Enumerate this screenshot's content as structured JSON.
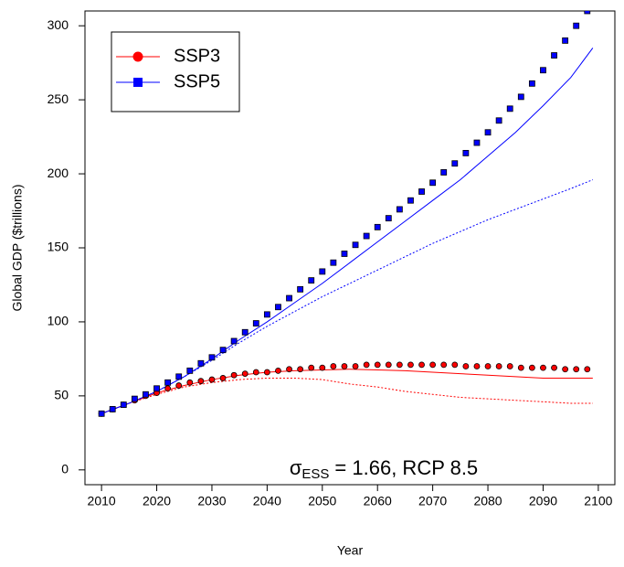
{
  "chart_data": {
    "type": "line",
    "xlabel": "Year",
    "ylabel": "Global GDP ($trillions)",
    "xlim": [
      2007,
      2103
    ],
    "ylim": [
      -10,
      310
    ],
    "xticks": [
      2010,
      2020,
      2030,
      2040,
      2050,
      2060,
      2070,
      2080,
      2090,
      2100
    ],
    "yticks": [
      0,
      50,
      100,
      150,
      200,
      250,
      300
    ],
    "legend": "top-left",
    "annotation": {
      "symbol": "σ",
      "subscript": "ESS",
      "text": "= 1.66, RCP 8.5"
    },
    "series": [
      {
        "name": "SSP3",
        "color": "#ff0000",
        "marker": "circle",
        "x": [
          2010,
          2012,
          2014,
          2016,
          2018,
          2020,
          2022,
          2024,
          2026,
          2028,
          2030,
          2032,
          2034,
          2036,
          2038,
          2040,
          2042,
          2044,
          2046,
          2048,
          2050,
          2052,
          2054,
          2056,
          2058,
          2060,
          2062,
          2064,
          2066,
          2068,
          2070,
          2072,
          2074,
          2076,
          2078,
          2080,
          2082,
          2084,
          2086,
          2088,
          2090,
          2092,
          2094,
          2096,
          2098
        ],
        "values": [
          38,
          41,
          44,
          47,
          50,
          52,
          55,
          57,
          59,
          60,
          61,
          62,
          64,
          65,
          66,
          66,
          67,
          68,
          68,
          69,
          69,
          70,
          70,
          70,
          71,
          71,
          71,
          71,
          71,
          71,
          71,
          71,
          71,
          70,
          70,
          70,
          70,
          70,
          69,
          69,
          69,
          69,
          68,
          68,
          68
        ]
      },
      {
        "name": "SSP5",
        "color": "#0000ff",
        "marker": "square",
        "x": [
          2010,
          2012,
          2014,
          2016,
          2018,
          2020,
          2022,
          2024,
          2026,
          2028,
          2030,
          2032,
          2034,
          2036,
          2038,
          2040,
          2042,
          2044,
          2046,
          2048,
          2050,
          2052,
          2054,
          2056,
          2058,
          2060,
          2062,
          2064,
          2066,
          2068,
          2070,
          2072,
          2074,
          2076,
          2078,
          2080,
          2082,
          2084,
          2086,
          2088,
          2090,
          2092,
          2094,
          2096,
          2098
        ],
        "values": [
          38,
          41,
          44,
          48,
          51,
          55,
          59,
          63,
          67,
          72,
          76,
          81,
          87,
          93,
          99,
          105,
          110,
          116,
          122,
          128,
          134,
          140,
          146,
          152,
          158,
          164,
          170,
          176,
          182,
          188,
          194,
          201,
          207,
          214,
          221,
          228,
          236,
          244,
          252,
          261,
          270,
          280,
          290,
          300,
          310
        ]
      }
    ],
    "lines": [
      {
        "color": "#ff0000",
        "dash": "solid",
        "x": [
          2010,
          2015,
          2020,
          2025,
          2030,
          2035,
          2040,
          2045,
          2050,
          2055,
          2060,
          2065,
          2070,
          2075,
          2080,
          2085,
          2090,
          2095,
          2099
        ],
        "values": [
          38,
          45,
          52,
          57,
          61,
          64,
          66,
          67,
          67.5,
          68,
          67.5,
          67,
          66,
          65,
          64,
          63,
          62,
          62,
          62
        ]
      },
      {
        "color": "#ff0000",
        "dash": "dotted",
        "x": [
          2010,
          2015,
          2020,
          2025,
          2030,
          2035,
          2040,
          2045,
          2050,
          2055,
          2060,
          2065,
          2070,
          2075,
          2080,
          2085,
          2090,
          2095,
          2099
        ],
        "values": [
          38,
          45,
          51,
          56,
          59,
          61,
          62,
          62,
          61,
          58,
          56,
          53,
          51,
          49,
          48,
          47,
          46,
          45,
          45
        ]
      },
      {
        "color": "#0000ff",
        "dash": "solid",
        "x": [
          2010,
          2015,
          2020,
          2025,
          2030,
          2035,
          2040,
          2045,
          2050,
          2055,
          2060,
          2065,
          2070,
          2075,
          2080,
          2085,
          2090,
          2095,
          2099
        ],
        "values": [
          38,
          45,
          53,
          63,
          75,
          88,
          100,
          113,
          126,
          140,
          154,
          168,
          182,
          196,
          212,
          228,
          246,
          265,
          285
        ]
      },
      {
        "color": "#0000ff",
        "dash": "dotted",
        "x": [
          2010,
          2015,
          2020,
          2025,
          2030,
          2035,
          2040,
          2045,
          2050,
          2055,
          2060,
          2065,
          2070,
          2075,
          2080,
          2085,
          2090,
          2095,
          2099
        ],
        "values": [
          38,
          45,
          53,
          63,
          74,
          86,
          97,
          107,
          117,
          126,
          135,
          144,
          153,
          161,
          169,
          176,
          183,
          190,
          196
        ]
      }
    ]
  }
}
